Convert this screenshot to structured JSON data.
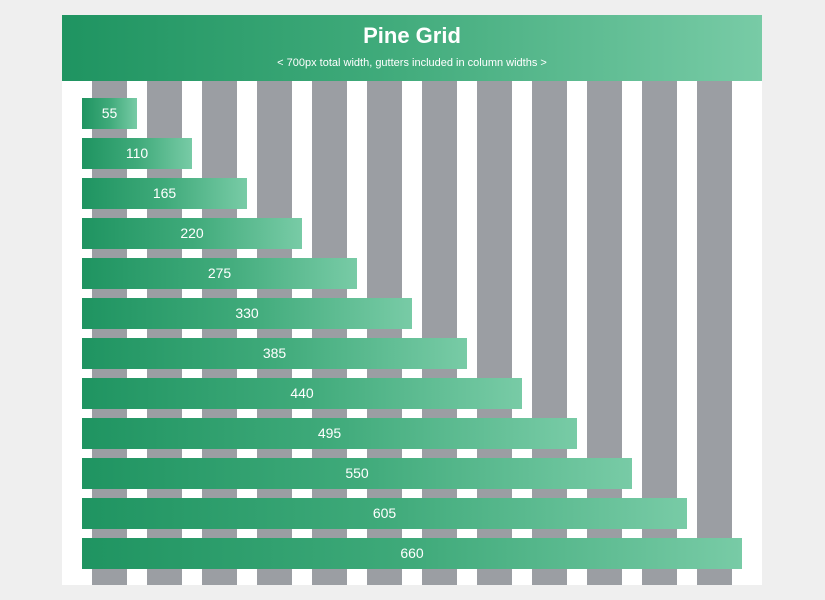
{
  "header": {
    "title": "Pine Grid",
    "subtitle": "< 700px total width, gutters included in column widths >"
  },
  "columns": {
    "count": 12
  },
  "bars": [
    {
      "label": "55"
    },
    {
      "label": "110"
    },
    {
      "label": "165"
    },
    {
      "label": "220"
    },
    {
      "label": "275"
    },
    {
      "label": "330"
    },
    {
      "label": "385"
    },
    {
      "label": "440"
    },
    {
      "label": "495"
    },
    {
      "label": "550"
    },
    {
      "label": "605"
    },
    {
      "label": "660"
    }
  ],
  "colors": {
    "accent_start": "#1f9461",
    "accent_end": "#78cba6",
    "column": "#9b9ea3",
    "page_background": "#efefef"
  }
}
